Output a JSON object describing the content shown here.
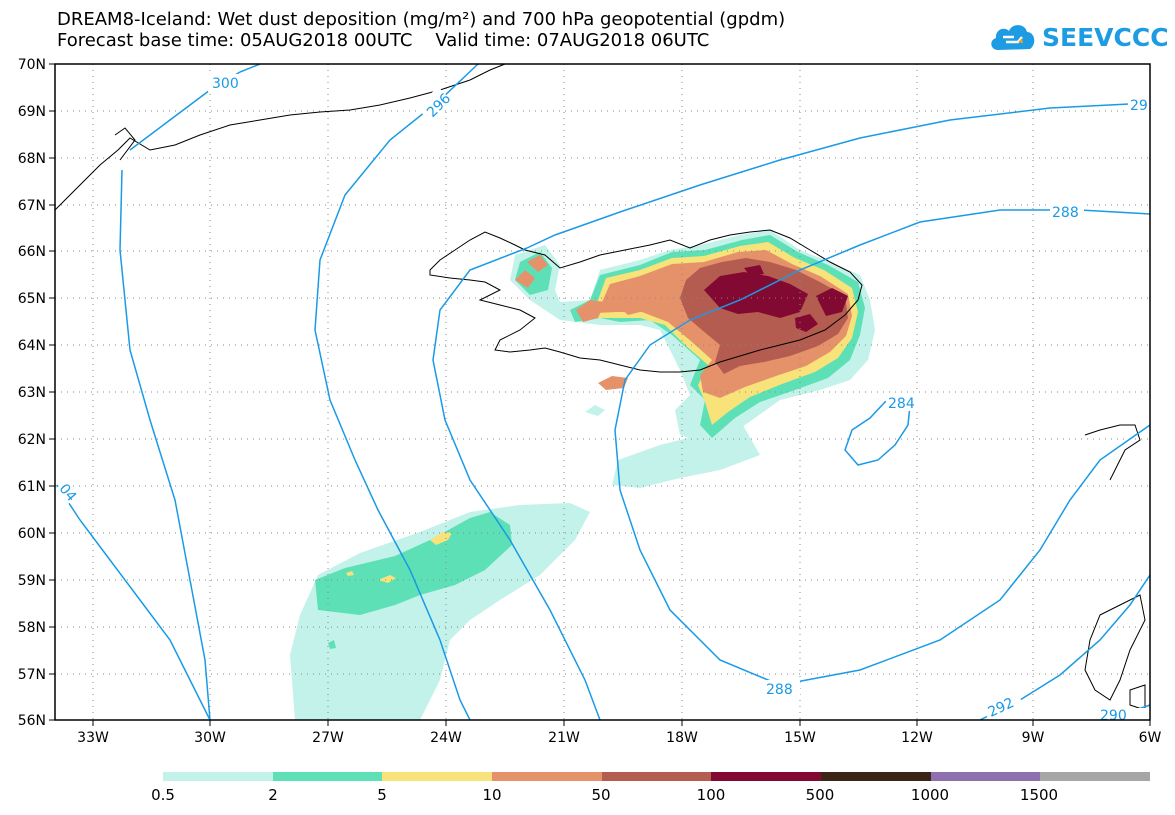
{
  "title_line1": "DREAM8-Iceland: Wet dust deposition (mg/m²) and 700 hPa geopotential (gpdm)",
  "title_line2": "Forecast base time: 05AUG2018 00UTC    Valid time: 07AUG2018 06UTC",
  "logo": {
    "text": "SEEVCCC",
    "icon": "cloud-logo-icon",
    "color": "#1d9be3"
  },
  "map": {
    "lat_labels": [
      "70N",
      "69N",
      "68N",
      "67N",
      "66N",
      "65N",
      "64N",
      "63N",
      "62N",
      "61N",
      "60N",
      "59N",
      "58N",
      "57N",
      "56N"
    ],
    "lon_labels": [
      "33W",
      "30W",
      "27W",
      "24W",
      "21W",
      "18W",
      "15W",
      "12W",
      "9W",
      "6W"
    ],
    "contour_labels": [
      "300",
      "296",
      "288",
      "284",
      "288",
      "292",
      "04",
      "29",
      "290"
    ],
    "contour_color": "#1a9ae6"
  },
  "legend": {
    "colors": [
      "#c2f2ea",
      "#5ee0b6",
      "#f7e37a",
      "#e5926b",
      "#b45c50",
      "#820a32",
      "#3b2517",
      "#8e6fb0",
      "#a6a6a6"
    ],
    "labels": [
      "0.5",
      "2",
      "5",
      "10",
      "50",
      "100",
      "500",
      "1000",
      "1500"
    ]
  }
}
